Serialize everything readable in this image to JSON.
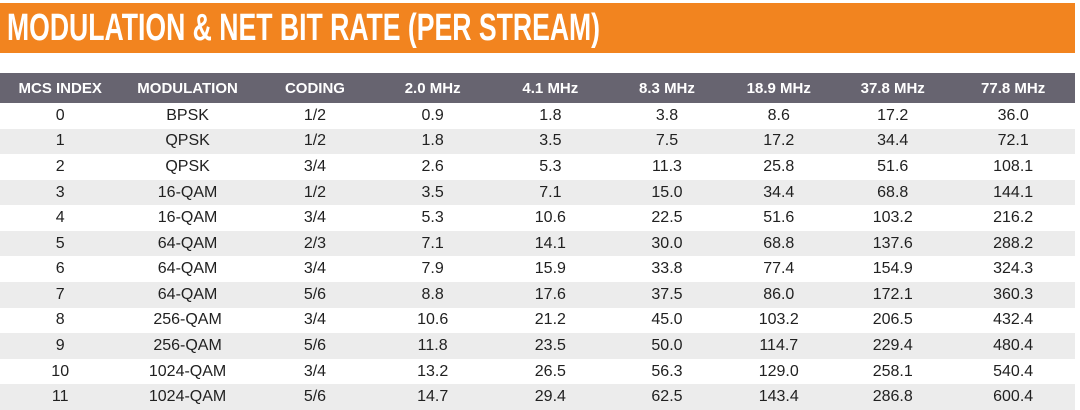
{
  "title": "MODULATION & NET BIT RATE (PER STREAM)",
  "colors": {
    "accent_orange": "#F2841F",
    "header_gray": "#676470",
    "row_alt": "#ECECEC",
    "data_text": "#212121",
    "header_text": "#FFFFFF"
  },
  "chart_data": {
    "type": "table",
    "title": "MODULATION & NET BIT RATE (PER STREAM)",
    "columns": [
      "MCS INDEX",
      "MODULATION",
      "CODING",
      "2.0 MHz",
      "4.1 MHz",
      "8.3 MHz",
      "18.9 MHz",
      "37.8 MHz",
      "77.8 MHz"
    ],
    "rows": [
      [
        "0",
        "BPSK",
        "1/2",
        "0.9",
        "1.8",
        "3.8",
        "8.6",
        "17.2",
        "36.0"
      ],
      [
        "1",
        "QPSK",
        "1/2",
        "1.8",
        "3.5",
        "7.5",
        "17.2",
        "34.4",
        "72.1"
      ],
      [
        "2",
        "QPSK",
        "3/4",
        "2.6",
        "5.3",
        "11.3",
        "25.8",
        "51.6",
        "108.1"
      ],
      [
        "3",
        "16-QAM",
        "1/2",
        "3.5",
        "7.1",
        "15.0",
        "34.4",
        "68.8",
        "144.1"
      ],
      [
        "4",
        "16-QAM",
        "3/4",
        "5.3",
        "10.6",
        "22.5",
        "51.6",
        "103.2",
        "216.2"
      ],
      [
        "5",
        "64-QAM",
        "2/3",
        "7.1",
        "14.1",
        "30.0",
        "68.8",
        "137.6",
        "288.2"
      ],
      [
        "6",
        "64-QAM",
        "3/4",
        "7.9",
        "15.9",
        "33.8",
        "77.4",
        "154.9",
        "324.3"
      ],
      [
        "7",
        "64-QAM",
        "5/6",
        "8.8",
        "17.6",
        "37.5",
        "86.0",
        "172.1",
        "360.3"
      ],
      [
        "8",
        "256-QAM",
        "3/4",
        "10.6",
        "21.2",
        "45.0",
        "103.2",
        "206.5",
        "432.4"
      ],
      [
        "9",
        "256-QAM",
        "5/6",
        "11.8",
        "23.5",
        "50.0",
        "114.7",
        "229.4",
        "480.4"
      ],
      [
        "10",
        "1024-QAM",
        "3/4",
        "13.2",
        "26.5",
        "56.3",
        "129.0",
        "258.1",
        "540.4"
      ],
      [
        "11",
        "1024-QAM",
        "5/6",
        "14.7",
        "29.4",
        "62.5",
        "143.4",
        "286.8",
        "600.4"
      ]
    ],
    "column_widths_pct": [
      11.2,
      12.5,
      11.2,
      10.7,
      11.2,
      10.5,
      10.3,
      10.9,
      11.5
    ]
  }
}
